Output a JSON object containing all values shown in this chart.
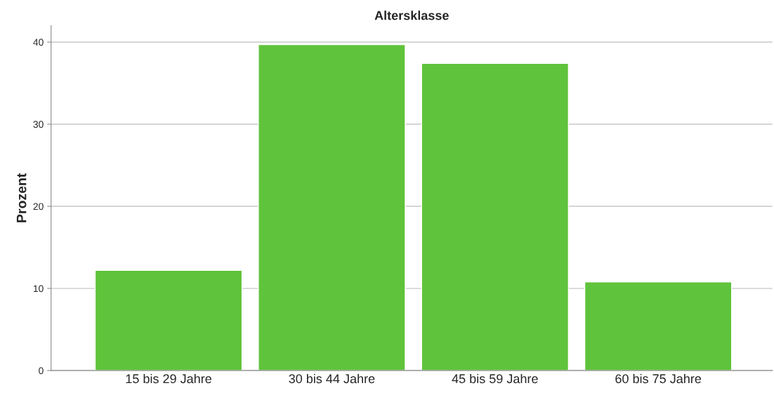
{
  "chart_data": {
    "type": "bar",
    "title": "Altersklasse",
    "ylabel": "Prozent",
    "categories": [
      "15 bis 29 Jahre",
      "30 bis 44 Jahre",
      "45 bis 59 Jahre",
      "60 bis 75 Jahre"
    ],
    "values": [
      12.2,
      39.7,
      37.4,
      10.8
    ],
    "color": "#5fc33b",
    "ylim": [
      0,
      42
    ],
    "yticks": [
      0,
      10,
      20,
      30,
      40
    ],
    "grid": "y"
  }
}
